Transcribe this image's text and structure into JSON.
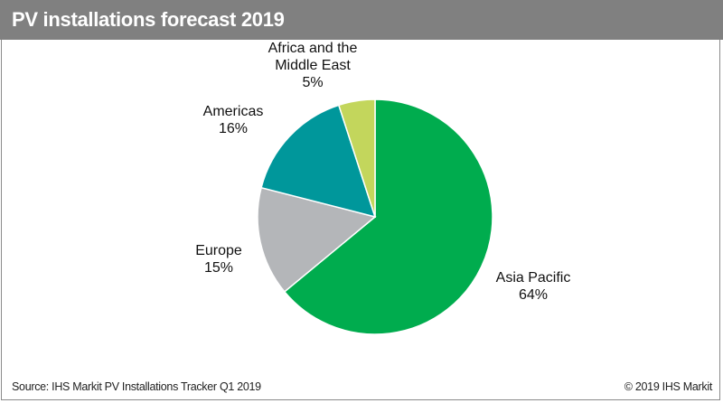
{
  "header": {
    "title": "PV installations forecast 2019"
  },
  "footer": {
    "source": "Source: IHS Markit PV Installations Tracker Q1 2019",
    "copyright": "© 2019 IHS Markit"
  },
  "chart_data": {
    "type": "pie",
    "title": "PV installations forecast 2019",
    "start": "top, clockwise",
    "slices": [
      {
        "label": "Asia Pacific",
        "value": 64,
        "display": "64%",
        "color": "#00ac4e"
      },
      {
        "label": "Europe",
        "value": 15,
        "display": "15%",
        "color": "#b4b6b9"
      },
      {
        "label": "Americas",
        "value": 16,
        "display": "16%",
        "color": "#00979b"
      },
      {
        "label": "Africa and the Middle East",
        "label_lines": [
          "Africa and the",
          "Middle East"
        ],
        "value": 5,
        "display": "5%",
        "color": "#c3d65c"
      }
    ]
  }
}
